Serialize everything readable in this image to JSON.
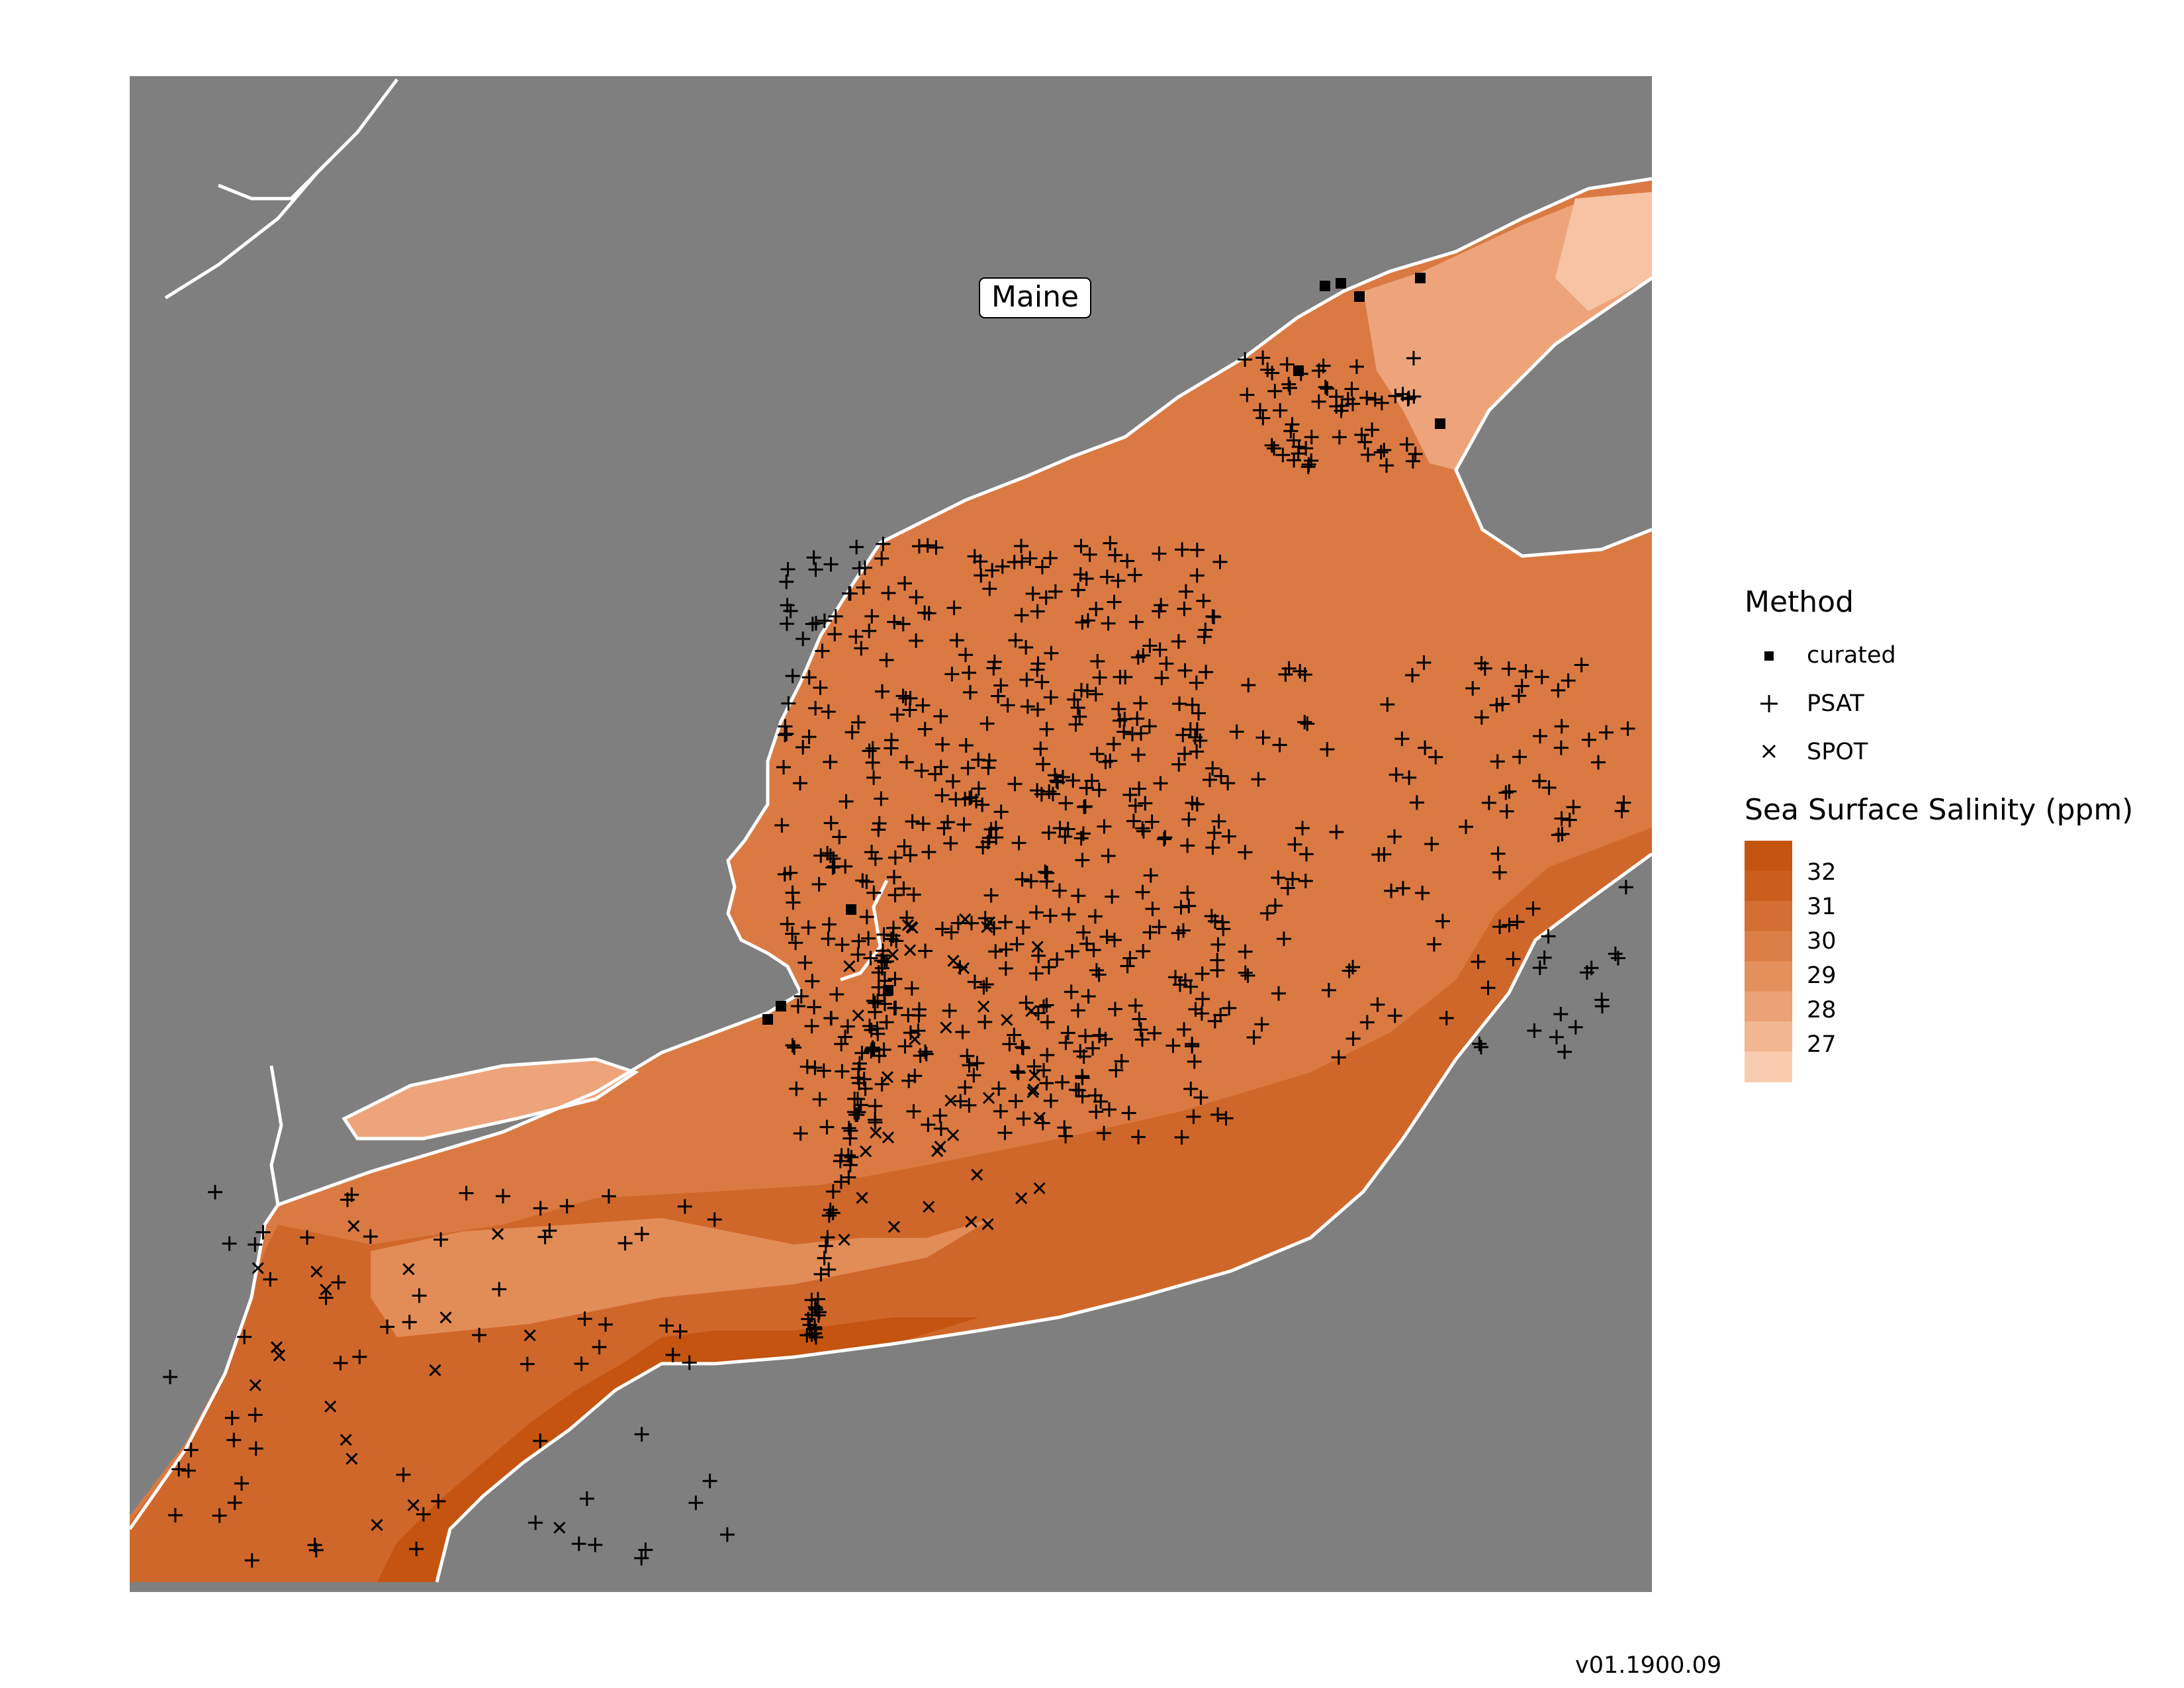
{
  "map": {
    "label": "Maine",
    "ocean_colors": {
      "deep_32": "#c4540f",
      "band_31": "#d0672a",
      "band_30": "#da7a42",
      "band_29": "#e28c58",
      "band_28": "#eda47b",
      "band_27": "#f6c4a5"
    },
    "land_color": "#7f7f7f",
    "coast_color": "#ffffff"
  },
  "legend": {
    "method_title": "Method",
    "methods": [
      {
        "label": "curated",
        "symbol": "square"
      },
      {
        "label": "PSAT",
        "symbol": "plus"
      },
      {
        "label": "SPOT",
        "symbol": "cross"
      }
    ],
    "salinity_title": "Sea Surface Salinity (ppm)",
    "salinity_ticks": [
      "32",
      "31",
      "30",
      "29",
      "28",
      "27"
    ],
    "salinity_colors": [
      "#c4540f",
      "#cc5e1d",
      "#d46e32",
      "#dc7f46",
      "#e3905c",
      "#eba274",
      "#f2b690",
      "#f9ccb0"
    ]
  },
  "version": "v01.1900.09"
}
